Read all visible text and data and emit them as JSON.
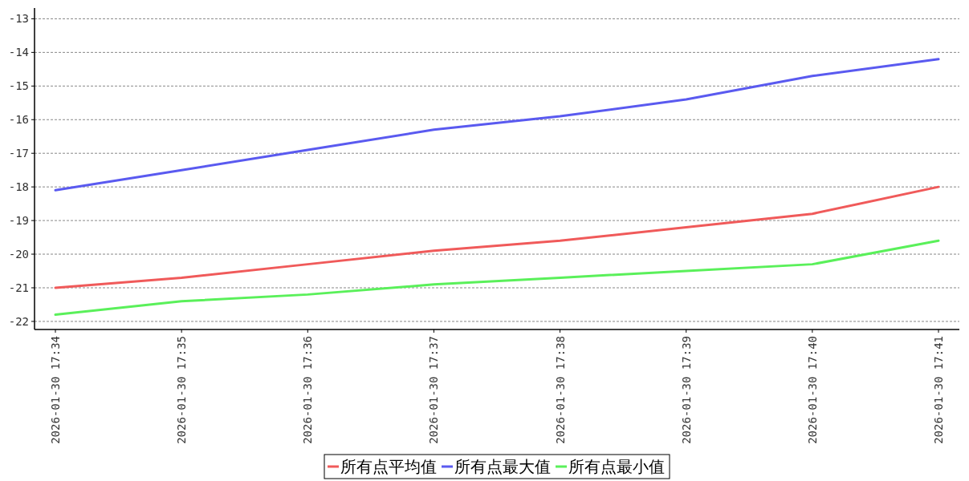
{
  "chart_data": {
    "type": "line",
    "categories": [
      "2026-01-30 17:34",
      "2026-01-30 17:35",
      "2026-01-30 17:36",
      "2026-01-30 17:37",
      "2026-01-30 17:38",
      "2026-01-30 17:39",
      "2026-01-30 17:40",
      "2026-01-30 17:41"
    ],
    "series": [
      {
        "name": "所有点平均值",
        "color": "#f05a5a",
        "values": [
          -21.0,
          -20.7,
          -20.3,
          -19.9,
          -19.6,
          -19.2,
          -18.8,
          -18.0
        ]
      },
      {
        "name": "所有点最大值",
        "color": "#5a5af0",
        "values": [
          -18.1,
          -17.5,
          -16.9,
          -16.3,
          -15.9,
          -15.4,
          -14.7,
          -14.2
        ]
      },
      {
        "name": "所有点最小值",
        "color": "#5af05a",
        "values": [
          -21.8,
          -21.4,
          -21.2,
          -20.9,
          -20.7,
          -20.5,
          -20.3,
          -19.6
        ]
      }
    ],
    "ylim": [
      -22.24,
      -12.68
    ],
    "yticks": [
      -22,
      -21,
      -20,
      -19,
      -18,
      -17,
      -16,
      -15,
      -14,
      -13
    ],
    "grid": "y",
    "legend": "bottom",
    "marker": "none",
    "line_style": "solid"
  }
}
